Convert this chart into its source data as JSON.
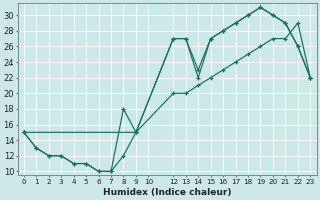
{
  "title": "",
  "xlabel": "Humidex (Indice chaleur)",
  "bg_color": "#cce8e8",
  "line_color": "#1a6e5e",
  "grid_color": "#ffffff",
  "xlim": [
    -0.5,
    23.5
  ],
  "ylim": [
    9.5,
    31.5
  ],
  "xtick_labels": [
    "0",
    "1",
    "2",
    "3",
    "4",
    "5",
    "6",
    "7",
    "8",
    "9",
    "10",
    "12",
    "13",
    "14",
    "15",
    "16",
    "17",
    "18",
    "19",
    "20",
    "21",
    "22",
    "23"
  ],
  "xtick_pos": [
    0,
    1,
    2,
    3,
    4,
    5,
    6,
    7,
    8,
    9,
    10,
    12,
    13,
    14,
    15,
    16,
    17,
    18,
    19,
    20,
    21,
    22,
    23
  ],
  "yticks": [
    10,
    12,
    14,
    16,
    18,
    20,
    22,
    24,
    26,
    28,
    30
  ],
  "line1_x": [
    0,
    1,
    2,
    3,
    4,
    5,
    6,
    7,
    8,
    9,
    12,
    13,
    14,
    15,
    16,
    17,
    18,
    19,
    20,
    21,
    22,
    23
  ],
  "line1_y": [
    15,
    13,
    12,
    12,
    11,
    11,
    10,
    10,
    12,
    15,
    27,
    27,
    22,
    27,
    28,
    29,
    30,
    31,
    30,
    29,
    26,
    22
  ],
  "line2_x": [
    0,
    1,
    2,
    3,
    4,
    5,
    6,
    7,
    8,
    9,
    12,
    13,
    14,
    15,
    16,
    17,
    18,
    19,
    20,
    21,
    22,
    23
  ],
  "line2_y": [
    15,
    13,
    12,
    12,
    11,
    11,
    10,
    10,
    18,
    15,
    27,
    27,
    23,
    27,
    28,
    29,
    30,
    31,
    30,
    29,
    26,
    22
  ],
  "line3_x": [
    0,
    9,
    12,
    13,
    14,
    15,
    16,
    17,
    18,
    19,
    20,
    21,
    22,
    23
  ],
  "line3_y": [
    15,
    15,
    20,
    20,
    21,
    22,
    23,
    24,
    25,
    26,
    27,
    27,
    29,
    22
  ]
}
